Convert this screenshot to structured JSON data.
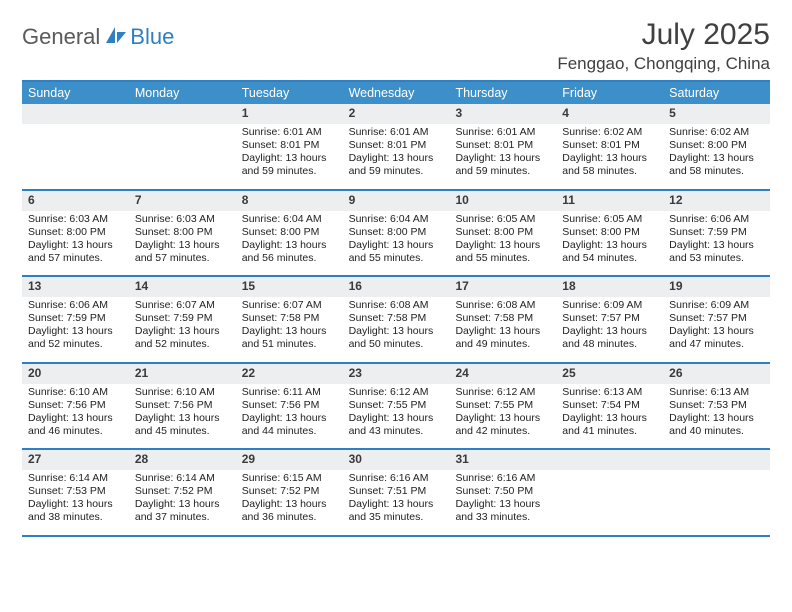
{
  "brand": {
    "general": "General",
    "blue": "Blue"
  },
  "title": "July 2025",
  "location": "Fenggao, Chongqing, China",
  "colors": {
    "accent": "#2f7fc3",
    "header_bg": "#3d8fc9",
    "daynum_bg": "#eceeef",
    "text": "#222222"
  },
  "dow": [
    "Sunday",
    "Monday",
    "Tuesday",
    "Wednesday",
    "Thursday",
    "Friday",
    "Saturday"
  ],
  "weeks": [
    [
      null,
      null,
      {
        "n": "1",
        "sr": "6:01 AM",
        "ss": "8:01 PM",
        "dl": "13 hours and 59 minutes."
      },
      {
        "n": "2",
        "sr": "6:01 AM",
        "ss": "8:01 PM",
        "dl": "13 hours and 59 minutes."
      },
      {
        "n": "3",
        "sr": "6:01 AM",
        "ss": "8:01 PM",
        "dl": "13 hours and 59 minutes."
      },
      {
        "n": "4",
        "sr": "6:02 AM",
        "ss": "8:01 PM",
        "dl": "13 hours and 58 minutes."
      },
      {
        "n": "5",
        "sr": "6:02 AM",
        "ss": "8:00 PM",
        "dl": "13 hours and 58 minutes."
      }
    ],
    [
      {
        "n": "6",
        "sr": "6:03 AM",
        "ss": "8:00 PM",
        "dl": "13 hours and 57 minutes."
      },
      {
        "n": "7",
        "sr": "6:03 AM",
        "ss": "8:00 PM",
        "dl": "13 hours and 57 minutes."
      },
      {
        "n": "8",
        "sr": "6:04 AM",
        "ss": "8:00 PM",
        "dl": "13 hours and 56 minutes."
      },
      {
        "n": "9",
        "sr": "6:04 AM",
        "ss": "8:00 PM",
        "dl": "13 hours and 55 minutes."
      },
      {
        "n": "10",
        "sr": "6:05 AM",
        "ss": "8:00 PM",
        "dl": "13 hours and 55 minutes."
      },
      {
        "n": "11",
        "sr": "6:05 AM",
        "ss": "8:00 PM",
        "dl": "13 hours and 54 minutes."
      },
      {
        "n": "12",
        "sr": "6:06 AM",
        "ss": "7:59 PM",
        "dl": "13 hours and 53 minutes."
      }
    ],
    [
      {
        "n": "13",
        "sr": "6:06 AM",
        "ss": "7:59 PM",
        "dl": "13 hours and 52 minutes."
      },
      {
        "n": "14",
        "sr": "6:07 AM",
        "ss": "7:59 PM",
        "dl": "13 hours and 52 minutes."
      },
      {
        "n": "15",
        "sr": "6:07 AM",
        "ss": "7:58 PM",
        "dl": "13 hours and 51 minutes."
      },
      {
        "n": "16",
        "sr": "6:08 AM",
        "ss": "7:58 PM",
        "dl": "13 hours and 50 minutes."
      },
      {
        "n": "17",
        "sr": "6:08 AM",
        "ss": "7:58 PM",
        "dl": "13 hours and 49 minutes."
      },
      {
        "n": "18",
        "sr": "6:09 AM",
        "ss": "7:57 PM",
        "dl": "13 hours and 48 minutes."
      },
      {
        "n": "19",
        "sr": "6:09 AM",
        "ss": "7:57 PM",
        "dl": "13 hours and 47 minutes."
      }
    ],
    [
      {
        "n": "20",
        "sr": "6:10 AM",
        "ss": "7:56 PM",
        "dl": "13 hours and 46 minutes."
      },
      {
        "n": "21",
        "sr": "6:10 AM",
        "ss": "7:56 PM",
        "dl": "13 hours and 45 minutes."
      },
      {
        "n": "22",
        "sr": "6:11 AM",
        "ss": "7:56 PM",
        "dl": "13 hours and 44 minutes."
      },
      {
        "n": "23",
        "sr": "6:12 AM",
        "ss": "7:55 PM",
        "dl": "13 hours and 43 minutes."
      },
      {
        "n": "24",
        "sr": "6:12 AM",
        "ss": "7:55 PM",
        "dl": "13 hours and 42 minutes."
      },
      {
        "n": "25",
        "sr": "6:13 AM",
        "ss": "7:54 PM",
        "dl": "13 hours and 41 minutes."
      },
      {
        "n": "26",
        "sr": "6:13 AM",
        "ss": "7:53 PM",
        "dl": "13 hours and 40 minutes."
      }
    ],
    [
      {
        "n": "27",
        "sr": "6:14 AM",
        "ss": "7:53 PM",
        "dl": "13 hours and 38 minutes."
      },
      {
        "n": "28",
        "sr": "6:14 AM",
        "ss": "7:52 PM",
        "dl": "13 hours and 37 minutes."
      },
      {
        "n": "29",
        "sr": "6:15 AM",
        "ss": "7:52 PM",
        "dl": "13 hours and 36 minutes."
      },
      {
        "n": "30",
        "sr": "6:16 AM",
        "ss": "7:51 PM",
        "dl": "13 hours and 35 minutes."
      },
      {
        "n": "31",
        "sr": "6:16 AM",
        "ss": "7:50 PM",
        "dl": "13 hours and 33 minutes."
      },
      null,
      null
    ]
  ],
  "labels": {
    "sunrise": "Sunrise:",
    "sunset": "Sunset:",
    "daylight": "Daylight:"
  }
}
